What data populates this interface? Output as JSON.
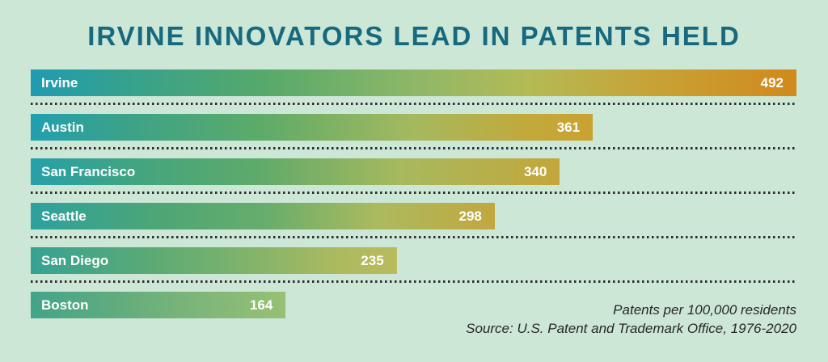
{
  "title": "IRVINE INNOVATORS LEAD IN PATENTS HELD",
  "footnote": {
    "line1": "Patents per 100,000 residents",
    "line2": "Source: U.S. Patent and Trademark Office, 1976-2020"
  },
  "colors": {
    "background": "#cce7d6",
    "title_text": "#17697f",
    "bar_text": "#ffffff",
    "separator_dots": "#2d2d2d",
    "gradient_start_teal": "#1f9bb2",
    "gradient_end_orange": "#d1891c"
  },
  "chart_data": {
    "type": "bar",
    "orientation": "horizontal",
    "title": "IRVINE INNOVATORS LEAD IN PATENTS HELD",
    "categories": [
      "Irvine",
      "Austin",
      "San Francisco",
      "Seattle",
      "San Diego",
      "Boston"
    ],
    "values": [
      492,
      361,
      340,
      298,
      235,
      164
    ],
    "xlabel": "Patents per 100,000 residents",
    "xlim": [
      0,
      492
    ],
    "grid": false,
    "legend": false,
    "value_labels": "inside-right",
    "source": "Source: U.S. Patent and Trademark Office, 1976-2020"
  },
  "bars": [
    {
      "label": "Irvine",
      "value": "492",
      "width_pct": 100,
      "gradient": [
        "#1f9bb2 0%",
        "#35a18e 12%",
        "#55a96b 30%",
        "#8eb768 50%",
        "#b4ba55 65%",
        "#c7a438 80%",
        "#d1891c 100%"
      ]
    },
    {
      "label": "Austin",
      "value": "361",
      "width_pct": 73.4,
      "gradient": [
        "#219fb0 0%",
        "#3aa28a 16%",
        "#5dab68 41%",
        "#a5b95f 68%",
        "#c2a93c 88%",
        "#c9a22f 100%"
      ]
    },
    {
      "label": "San Francisco",
      "value": "340",
      "width_pct": 69.1,
      "gradient": [
        "#26a0a9 0%",
        "#45a57c 22%",
        "#5faa6a 43%",
        "#a8b95e 70%",
        "#c4a63a 100%"
      ]
    },
    {
      "label": "Seattle",
      "value": "298",
      "width_pct": 60.6,
      "gradient": [
        "#2da19e 0%",
        "#4ea674 28%",
        "#66ad6d 50%",
        "#acba5e 75%",
        "#c2a73f 100%"
      ]
    },
    {
      "label": "San Diego",
      "value": "235",
      "width_pct": 47.8,
      "gradient": [
        "#37a293 0%",
        "#58a977 30%",
        "#79b26c 55%",
        "#aeba5f 85%",
        "#b8bb5e 100%"
      ]
    },
    {
      "label": "Boston",
      "value": "164",
      "width_pct": 33.3,
      "gradient": [
        "#43a489 0%",
        "#62ac7d 35%",
        "#79b47a 60%",
        "#97c074 100%"
      ]
    }
  ]
}
